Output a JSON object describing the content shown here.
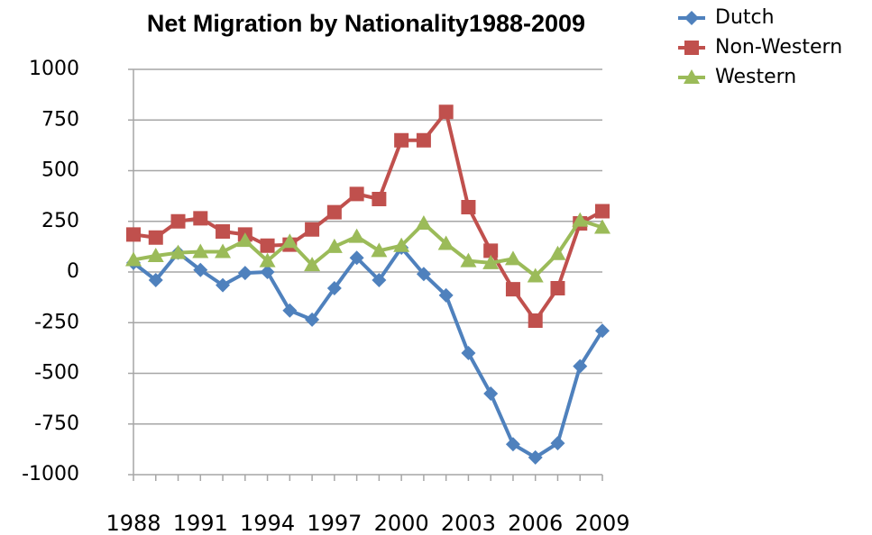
{
  "chart_data": {
    "type": "line",
    "title": "Net Migration by Nationality1988-2009",
    "x": [
      1988,
      1989,
      1990,
      1991,
      1992,
      1993,
      1994,
      1995,
      1996,
      1997,
      1998,
      1999,
      2000,
      2001,
      2002,
      2003,
      2004,
      2005,
      2006,
      2007,
      2008,
      2009
    ],
    "xlim": [
      1988,
      2009
    ],
    "xticks": [
      1988,
      1991,
      1994,
      1997,
      2000,
      2003,
      2006,
      2009
    ],
    "ylim": [
      -1000,
      1000
    ],
    "yticks": [
      -1000,
      -750,
      -500,
      -250,
      0,
      250,
      500,
      750,
      1000
    ],
    "grid": true,
    "legend": "right",
    "series": [
      {
        "name": "Dutch",
        "color": "#4f81bd",
        "marker": "diamond",
        "values": [
          45,
          -40,
          95,
          10,
          -65,
          -5,
          0,
          -190,
          -235,
          -80,
          70,
          -40,
          120,
          -10,
          -115,
          -400,
          -600,
          -850,
          -915,
          -845,
          -465,
          -290
        ]
      },
      {
        "name": "Non-Western",
        "color": "#c0504d",
        "marker": "square",
        "values": [
          185,
          170,
          250,
          265,
          200,
          185,
          130,
          135,
          210,
          295,
          385,
          360,
          650,
          650,
          790,
          320,
          105,
          -85,
          -240,
          -80,
          240,
          300
        ]
      },
      {
        "name": "Western",
        "color": "#9bbb59",
        "marker": "triangle",
        "values": [
          60,
          80,
          95,
          100,
          100,
          155,
          55,
          150,
          35,
          125,
          175,
          105,
          130,
          240,
          140,
          55,
          45,
          65,
          -20,
          90,
          255,
          220
        ]
      }
    ]
  }
}
